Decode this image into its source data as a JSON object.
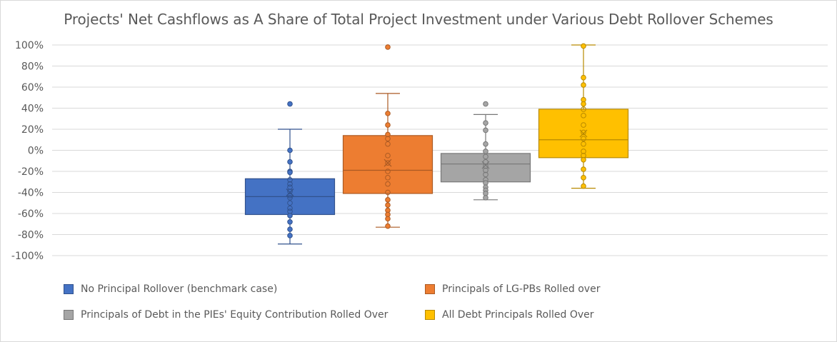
{
  "chart_data": {
    "type": "box",
    "title": "Projects' Net Cashflows as A Share of Total Project Investment under Various Debt Rollover Schemes",
    "xlabel": "",
    "ylabel": "",
    "ylim": [
      -100,
      100
    ],
    "yticks": [
      "100%",
      "80%",
      "60%",
      "40%",
      "20%",
      "0%",
      "-20%",
      "-40%",
      "-60%",
      "-80%",
      "-100%"
    ],
    "grid": true,
    "legend_position": "bottom",
    "series": [
      {
        "name": "No Principal Rollover (benchmark case)",
        "color": "#4472c4",
        "min": -89,
        "q1": -61,
        "median": -44,
        "q3": -27,
        "max": 20,
        "mean": -40,
        "points": [
          44,
          0,
          -11,
          -20,
          -21,
          -28,
          -32,
          -35,
          -39,
          -43,
          -45,
          -50,
          -55,
          -58,
          -62,
          -68,
          -75,
          -81
        ],
        "outliers": [
          44
        ]
      },
      {
        "name": "Principals of LG-PBs Rolled over",
        "color": "#ed7d31",
        "min": -73,
        "q1": -41,
        "median": -19,
        "q3": 14,
        "max": 54,
        "mean": -12,
        "points": [
          98,
          35,
          24,
          15,
          11,
          6,
          -5,
          -12,
          -20,
          -26,
          -32,
          -40,
          -47,
          -52,
          -57,
          -61,
          -65,
          -72
        ],
        "outliers": [
          98
        ]
      },
      {
        "name": "Principals of Debt in the PIEs' Equity Contribution Rolled Over",
        "color": "#a5a5a5",
        "min": -47,
        "q1": -30,
        "median": -13,
        "q3": -3,
        "max": 34,
        "mean": -14,
        "points": [
          44,
          26,
          19,
          6,
          -1,
          -6,
          -11,
          -15,
          -19,
          -23,
          -28,
          -31,
          -35,
          -38,
          -41,
          -45
        ],
        "outliers": [
          44
        ]
      },
      {
        "name": "All Debt Principals Rolled Over",
        "color": "#ffc000",
        "min": -36,
        "q1": -7,
        "median": 10,
        "q3": 39,
        "max": 100,
        "mean": 16,
        "points": [
          99,
          69,
          62,
          48,
          44,
          39,
          33,
          24,
          17,
          11,
          6,
          -1,
          -5,
          -9,
          -18,
          -26,
          -34
        ],
        "outliers": []
      }
    ]
  }
}
